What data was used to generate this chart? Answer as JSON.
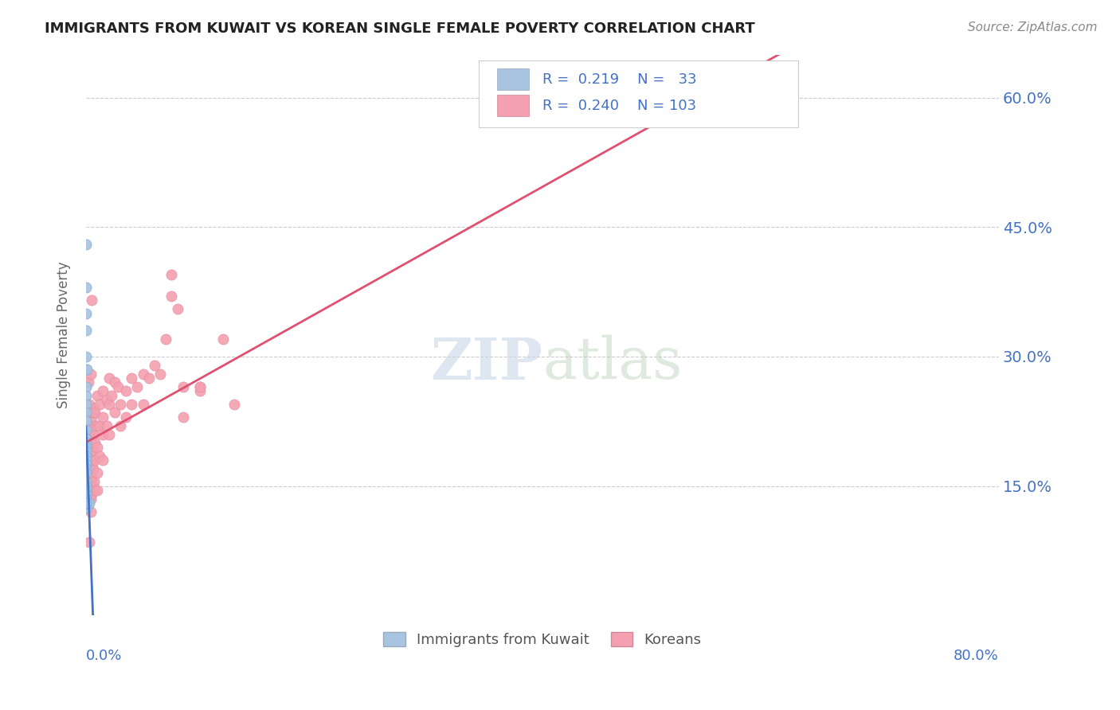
{
  "title": "IMMIGRANTS FROM KUWAIT VS KOREAN SINGLE FEMALE POVERTY CORRELATION CHART",
  "source": "Source: ZipAtlas.com",
  "ylabel": "Single Female Poverty",
  "xlim": [
    0.0,
    0.8
  ],
  "ylim": [
    0.0,
    0.65
  ],
  "watermark": "ZIPatlas",
  "legend1_label": "Immigrants from Kuwait",
  "legend2_label": "Koreans",
  "R1": 0.219,
  "N1": 33,
  "R2": 0.24,
  "N2": 103,
  "kuwait_color": "#a8c4e0",
  "korean_color": "#f4a0b0",
  "kuwait_line_color": "#4472c4",
  "korean_line_color": "#e05070",
  "kuwait_dashed_color": "#aab8cc",
  "background_color": "#ffffff",
  "axis_color": "#4472c4",
  "grid_color": "#cccccc",
  "kuwait_points": [
    [
      0.0,
      0.43
    ],
    [
      0.0,
      0.38
    ],
    [
      0.0,
      0.35
    ],
    [
      0.0,
      0.33
    ],
    [
      0.0,
      0.3
    ],
    [
      0.0,
      0.285
    ],
    [
      0.0,
      0.265
    ],
    [
      0.0,
      0.255
    ],
    [
      0.0,
      0.245
    ],
    [
      0.0,
      0.235
    ],
    [
      0.0,
      0.225
    ],
    [
      0.0,
      0.215
    ],
    [
      0.0,
      0.205
    ],
    [
      0.0,
      0.2
    ],
    [
      0.0,
      0.195
    ],
    [
      0.0,
      0.19
    ],
    [
      0.0,
      0.185
    ],
    [
      0.0,
      0.18
    ],
    [
      0.0,
      0.175
    ],
    [
      0.0,
      0.17
    ],
    [
      0.0,
      0.165
    ],
    [
      0.0,
      0.155
    ],
    [
      0.0,
      0.15
    ],
    [
      0.0,
      0.145
    ],
    [
      0.0,
      0.14
    ],
    [
      0.0,
      0.135
    ],
    [
      0.001,
      0.285
    ],
    [
      0.001,
      0.13
    ],
    [
      0.001,
      0.125
    ],
    [
      0.001,
      0.13
    ],
    [
      0.003,
      0.13
    ],
    [
      0.0,
      0.13
    ],
    [
      0.0,
      0.13
    ]
  ],
  "korean_points": [
    [
      0.0,
      0.21
    ],
    [
      0.0,
      0.2
    ],
    [
      0.0,
      0.18
    ],
    [
      0.0,
      0.17
    ],
    [
      0.0,
      0.16
    ],
    [
      0.0,
      0.155
    ],
    [
      0.001,
      0.22
    ],
    [
      0.001,
      0.19
    ],
    [
      0.001,
      0.185
    ],
    [
      0.001,
      0.175
    ],
    [
      0.001,
      0.165
    ],
    [
      0.001,
      0.155
    ],
    [
      0.001,
      0.145
    ],
    [
      0.001,
      0.135
    ],
    [
      0.002,
      0.27
    ],
    [
      0.002,
      0.22
    ],
    [
      0.002,
      0.21
    ],
    [
      0.002,
      0.195
    ],
    [
      0.002,
      0.185
    ],
    [
      0.002,
      0.175
    ],
    [
      0.002,
      0.165
    ],
    [
      0.002,
      0.155
    ],
    [
      0.003,
      0.245
    ],
    [
      0.003,
      0.22
    ],
    [
      0.003,
      0.205
    ],
    [
      0.003,
      0.19
    ],
    [
      0.003,
      0.18
    ],
    [
      0.003,
      0.16
    ],
    [
      0.003,
      0.145
    ],
    [
      0.003,
      0.085
    ],
    [
      0.004,
      0.28
    ],
    [
      0.004,
      0.235
    ],
    [
      0.004,
      0.21
    ],
    [
      0.004,
      0.19
    ],
    [
      0.004,
      0.175
    ],
    [
      0.004,
      0.155
    ],
    [
      0.004,
      0.135
    ],
    [
      0.004,
      0.12
    ],
    [
      0.005,
      0.365
    ],
    [
      0.005,
      0.23
    ],
    [
      0.005,
      0.2
    ],
    [
      0.005,
      0.18
    ],
    [
      0.005,
      0.16
    ],
    [
      0.005,
      0.14
    ],
    [
      0.006,
      0.235
    ],
    [
      0.006,
      0.21
    ],
    [
      0.006,
      0.19
    ],
    [
      0.006,
      0.17
    ],
    [
      0.006,
      0.15
    ],
    [
      0.007,
      0.24
    ],
    [
      0.007,
      0.22
    ],
    [
      0.007,
      0.18
    ],
    [
      0.007,
      0.155
    ],
    [
      0.008,
      0.235
    ],
    [
      0.008,
      0.2
    ],
    [
      0.008,
      0.18
    ],
    [
      0.008,
      0.145
    ],
    [
      0.01,
      0.255
    ],
    [
      0.01,
      0.22
    ],
    [
      0.01,
      0.195
    ],
    [
      0.01,
      0.165
    ],
    [
      0.01,
      0.145
    ],
    [
      0.012,
      0.245
    ],
    [
      0.012,
      0.22
    ],
    [
      0.012,
      0.185
    ],
    [
      0.015,
      0.26
    ],
    [
      0.015,
      0.23
    ],
    [
      0.015,
      0.21
    ],
    [
      0.015,
      0.18
    ],
    [
      0.018,
      0.25
    ],
    [
      0.018,
      0.22
    ],
    [
      0.02,
      0.275
    ],
    [
      0.02,
      0.245
    ],
    [
      0.02,
      0.21
    ],
    [
      0.022,
      0.255
    ],
    [
      0.025,
      0.27
    ],
    [
      0.025,
      0.235
    ],
    [
      0.028,
      0.265
    ],
    [
      0.03,
      0.245
    ],
    [
      0.03,
      0.22
    ],
    [
      0.035,
      0.26
    ],
    [
      0.035,
      0.23
    ],
    [
      0.04,
      0.275
    ],
    [
      0.04,
      0.245
    ],
    [
      0.045,
      0.265
    ],
    [
      0.05,
      0.28
    ],
    [
      0.05,
      0.245
    ],
    [
      0.055,
      0.275
    ],
    [
      0.06,
      0.29
    ],
    [
      0.065,
      0.28
    ],
    [
      0.07,
      0.32
    ],
    [
      0.075,
      0.395
    ],
    [
      0.075,
      0.37
    ],
    [
      0.08,
      0.355
    ],
    [
      0.085,
      0.265
    ],
    [
      0.085,
      0.23
    ],
    [
      0.1,
      0.265
    ],
    [
      0.1,
      0.26
    ],
    [
      0.1,
      0.265
    ],
    [
      0.12,
      0.32
    ],
    [
      0.13,
      0.245
    ],
    [
      0.56,
      0.595
    ],
    [
      0.6,
      0.595
    ]
  ],
  "kuwait_line_xlim": [
    0.0,
    0.008
  ],
  "kuwait_dash_xlim": [
    0.0,
    0.42
  ],
  "korean_line_xlim": [
    0.0,
    0.8
  ]
}
